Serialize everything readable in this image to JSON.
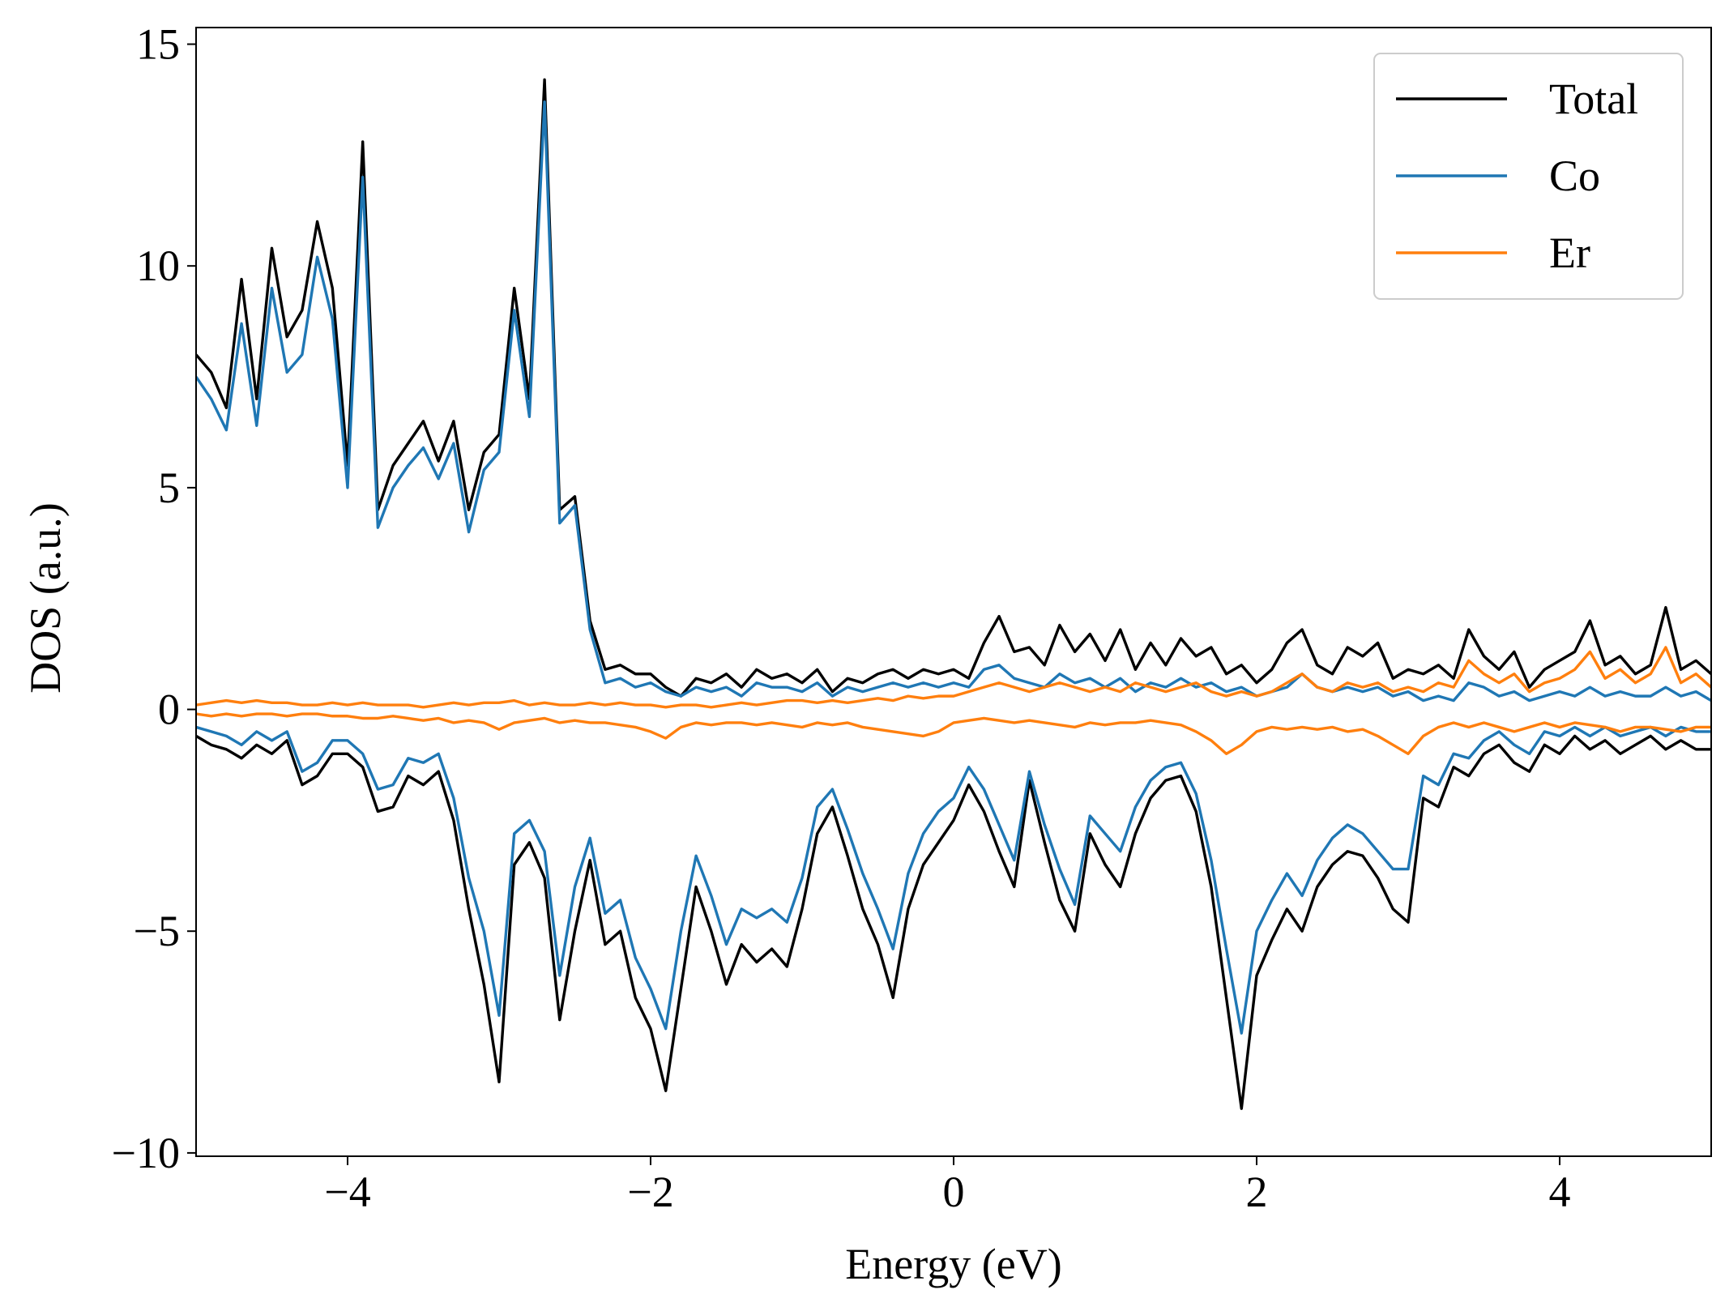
{
  "chart_data": {
    "type": "line",
    "x_label": "Energy (eV)",
    "y_label": "DOS (a.u.)",
    "legend": "upper right",
    "xlim": [
      -5,
      5
    ],
    "ylim": [
      -10.075,
      15.375
    ],
    "xticks": [
      {
        "value": -4,
        "label": "−4"
      },
      {
        "value": -2,
        "label": "−2"
      },
      0,
      2,
      4
    ],
    "yticks": [
      {
        "value": -10,
        "label": "−10"
      },
      {
        "value": -5,
        "label": "−5"
      },
      0,
      5,
      10,
      15
    ],
    "x": [
      -5.0,
      -4.9,
      -4.8,
      -4.7,
      -4.6,
      -4.5,
      -4.4,
      -4.3,
      -4.2,
      -4.1,
      -4.0,
      -3.9,
      -3.8,
      -3.7,
      -3.6,
      -3.5,
      -3.4,
      -3.3,
      -3.2,
      -3.1,
      -3.0,
      -2.9,
      -2.8,
      -2.7,
      -2.6,
      -2.5,
      -2.4,
      -2.3,
      -2.2,
      -2.1,
      -2.0,
      -1.9,
      -1.8,
      -1.7,
      -1.6,
      -1.5,
      -1.4,
      -1.3,
      -1.2,
      -1.1,
      -1.0,
      -0.9,
      -0.8,
      -0.7,
      -0.6,
      -0.5,
      -0.4,
      -0.3,
      -0.2,
      -0.1,
      0,
      0.1,
      0.2,
      0.3,
      0.4,
      0.5,
      0.6,
      0.7,
      0.8,
      0.9,
      1.0,
      1.1,
      1.2,
      1.3,
      1.4,
      1.5,
      1.6,
      1.7,
      1.8,
      1.9,
      2.0,
      2.1,
      2.2,
      2.3,
      2.4,
      2.5,
      2.6,
      2.7,
      2.8,
      2.9,
      3.0,
      3.1,
      3.2,
      3.3,
      3.4,
      3.5,
      3.6,
      3.7,
      3.8,
      3.9,
      4.0,
      4.1,
      4.2,
      4.3,
      4.4,
      4.5,
      4.6,
      4.7,
      4.8,
      4.9,
      5.0
    ],
    "series": [
      {
        "name": "Total",
        "color": "#000000",
        "values": [
          8.0,
          7.6,
          6.8,
          9.7,
          7.0,
          10.4,
          8.4,
          9.0,
          11.0,
          9.5,
          5.5,
          12.8,
          4.5,
          5.5,
          6.0,
          6.5,
          5.6,
          6.5,
          4.5,
          5.8,
          6.2,
          9.5,
          7.0,
          14.2,
          4.5,
          4.8,
          2.0,
          0.9,
          1.0,
          0.8,
          0.8,
          0.5,
          0.3,
          0.7,
          0.6,
          0.8,
          0.5,
          0.9,
          0.7,
          0.8,
          0.6,
          0.9,
          0.4,
          0.7,
          0.6,
          0.8,
          0.9,
          0.7,
          0.9,
          0.8,
          0.9,
          0.7,
          1.5,
          2.1,
          1.3,
          1.4,
          1.0,
          1.9,
          1.3,
          1.7,
          1.1,
          1.8,
          0.9,
          1.5,
          1.0,
          1.6,
          1.2,
          1.4,
          0.8,
          1.0,
          0.6,
          0.9,
          1.5,
          1.8,
          1.0,
          0.8,
          1.4,
          1.2,
          1.5,
          0.7,
          0.9,
          0.8,
          1.0,
          0.7,
          1.8,
          1.2,
          0.9,
          1.3,
          0.5,
          0.9,
          1.1,
          1.3,
          2.0,
          1.0,
          1.2,
          0.8,
          1.0,
          2.3,
          0.9,
          1.1,
          0.8
        ],
        "values_down": [
          -0.6,
          -0.8,
          -0.9,
          -1.1,
          -0.8,
          -1.0,
          -0.7,
          -1.7,
          -1.5,
          -1.0,
          -1.0,
          -1.3,
          -2.3,
          -2.2,
          -1.5,
          -1.7,
          -1.4,
          -2.5,
          -4.5,
          -6.2,
          -8.4,
          -3.5,
          -3.0,
          -3.8,
          -7.0,
          -5.0,
          -3.4,
          -5.3,
          -5.0,
          -6.5,
          -7.2,
          -8.6,
          -6.3,
          -4.0,
          -5.0,
          -6.2,
          -5.3,
          -5.7,
          -5.4,
          -5.8,
          -4.5,
          -2.8,
          -2.2,
          -3.3,
          -4.5,
          -5.3,
          -6.5,
          -4.5,
          -3.5,
          -3.0,
          -2.5,
          -1.7,
          -2.3,
          -3.2,
          -4.0,
          -1.6,
          -3.0,
          -4.3,
          -5.0,
          -2.8,
          -3.5,
          -4.0,
          -2.8,
          -2.0,
          -1.6,
          -1.5,
          -2.3,
          -4.0,
          -6.5,
          -9.0,
          -6.0,
          -5.2,
          -4.5,
          -5.0,
          -4.0,
          -3.5,
          -3.2,
          -3.3,
          -3.8,
          -4.5,
          -4.8,
          -2.0,
          -2.2,
          -1.3,
          -1.5,
          -1.0,
          -0.8,
          -1.2,
          -1.4,
          -0.8,
          -1.0,
          -0.6,
          -0.9,
          -0.7,
          -1.0,
          -0.8,
          -0.6,
          -0.9,
          -0.7,
          -0.9,
          -0.9
        ]
      },
      {
        "name": "Co",
        "color": "#1f77b4",
        "values": [
          7.5,
          7.0,
          6.3,
          8.7,
          6.4,
          9.5,
          7.6,
          8.0,
          10.2,
          8.8,
          5.0,
          12.0,
          4.1,
          5.0,
          5.5,
          5.9,
          5.2,
          6.0,
          4.0,
          5.4,
          5.8,
          9.0,
          6.6,
          13.7,
          4.2,
          4.6,
          1.8,
          0.6,
          0.7,
          0.5,
          0.6,
          0.4,
          0.3,
          0.5,
          0.4,
          0.5,
          0.3,
          0.6,
          0.5,
          0.5,
          0.4,
          0.6,
          0.3,
          0.5,
          0.4,
          0.5,
          0.6,
          0.5,
          0.6,
          0.5,
          0.6,
          0.5,
          0.9,
          1.0,
          0.7,
          0.6,
          0.5,
          0.8,
          0.6,
          0.7,
          0.5,
          0.7,
          0.4,
          0.6,
          0.5,
          0.7,
          0.5,
          0.6,
          0.4,
          0.5,
          0.3,
          0.4,
          0.5,
          0.8,
          0.5,
          0.4,
          0.5,
          0.4,
          0.5,
          0.3,
          0.4,
          0.2,
          0.3,
          0.2,
          0.6,
          0.5,
          0.3,
          0.4,
          0.2,
          0.3,
          0.4,
          0.3,
          0.5,
          0.3,
          0.4,
          0.3,
          0.3,
          0.5,
          0.3,
          0.4,
          0.2
        ],
        "values_down": [
          -0.4,
          -0.5,
          -0.6,
          -0.8,
          -0.5,
          -0.7,
          -0.5,
          -1.4,
          -1.2,
          -0.7,
          -0.7,
          -1.0,
          -1.8,
          -1.7,
          -1.1,
          -1.2,
          -1.0,
          -2.0,
          -3.8,
          -5.0,
          -6.9,
          -2.8,
          -2.5,
          -3.2,
          -6.0,
          -4.0,
          -2.9,
          -4.6,
          -4.3,
          -5.6,
          -6.3,
          -7.2,
          -5.0,
          -3.3,
          -4.2,
          -5.3,
          -4.5,
          -4.7,
          -4.5,
          -4.8,
          -3.8,
          -2.2,
          -1.8,
          -2.7,
          -3.7,
          -4.5,
          -5.4,
          -3.7,
          -2.8,
          -2.3,
          -2.0,
          -1.3,
          -1.8,
          -2.6,
          -3.4,
          -1.4,
          -2.6,
          -3.6,
          -4.4,
          -2.4,
          -2.8,
          -3.2,
          -2.2,
          -1.6,
          -1.3,
          -1.2,
          -1.9,
          -3.4,
          -5.4,
          -7.3,
          -5.0,
          -4.3,
          -3.7,
          -4.2,
          -3.4,
          -2.9,
          -2.6,
          -2.8,
          -3.2,
          -3.6,
          -3.6,
          -1.5,
          -1.7,
          -1.0,
          -1.1,
          -0.7,
          -0.5,
          -0.8,
          -1.0,
          -0.5,
          -0.6,
          -0.4,
          -0.6,
          -0.4,
          -0.6,
          -0.5,
          -0.4,
          -0.6,
          -0.4,
          -0.5,
          -0.5
        ]
      },
      {
        "name": "Er",
        "color": "#ff7f0e",
        "values": [
          0.1,
          0.15,
          0.2,
          0.15,
          0.2,
          0.15,
          0.15,
          0.1,
          0.1,
          0.15,
          0.1,
          0.15,
          0.1,
          0.1,
          0.1,
          0.05,
          0.1,
          0.15,
          0.1,
          0.15,
          0.15,
          0.2,
          0.1,
          0.15,
          0.1,
          0.1,
          0.15,
          0.1,
          0.15,
          0.1,
          0.1,
          0.05,
          0.1,
          0.1,
          0.05,
          0.1,
          0.15,
          0.1,
          0.15,
          0.2,
          0.2,
          0.15,
          0.2,
          0.15,
          0.2,
          0.25,
          0.2,
          0.3,
          0.25,
          0.3,
          0.3,
          0.4,
          0.5,
          0.6,
          0.5,
          0.4,
          0.5,
          0.6,
          0.5,
          0.4,
          0.5,
          0.4,
          0.6,
          0.5,
          0.4,
          0.5,
          0.6,
          0.4,
          0.3,
          0.4,
          0.3,
          0.4,
          0.6,
          0.8,
          0.5,
          0.4,
          0.6,
          0.5,
          0.6,
          0.4,
          0.5,
          0.4,
          0.6,
          0.5,
          1.1,
          0.8,
          0.6,
          0.8,
          0.4,
          0.6,
          0.7,
          0.9,
          1.3,
          0.7,
          0.9,
          0.6,
          0.8,
          1.4,
          0.6,
          0.8,
          0.5
        ],
        "values_down": [
          -0.1,
          -0.15,
          -0.1,
          -0.15,
          -0.1,
          -0.1,
          -0.15,
          -0.1,
          -0.1,
          -0.15,
          -0.15,
          -0.2,
          -0.2,
          -0.15,
          -0.2,
          -0.25,
          -0.2,
          -0.3,
          -0.25,
          -0.3,
          -0.45,
          -0.3,
          -0.25,
          -0.2,
          -0.3,
          -0.25,
          -0.3,
          -0.3,
          -0.35,
          -0.4,
          -0.5,
          -0.65,
          -0.4,
          -0.3,
          -0.35,
          -0.3,
          -0.3,
          -0.35,
          -0.3,
          -0.35,
          -0.4,
          -0.3,
          -0.35,
          -0.3,
          -0.4,
          -0.45,
          -0.5,
          -0.55,
          -0.6,
          -0.5,
          -0.3,
          -0.25,
          -0.2,
          -0.25,
          -0.3,
          -0.25,
          -0.3,
          -0.35,
          -0.4,
          -0.3,
          -0.35,
          -0.3,
          -0.3,
          -0.25,
          -0.3,
          -0.35,
          -0.5,
          -0.7,
          -1.0,
          -0.8,
          -0.5,
          -0.4,
          -0.45,
          -0.4,
          -0.45,
          -0.4,
          -0.5,
          -0.45,
          -0.6,
          -0.8,
          -1.0,
          -0.6,
          -0.4,
          -0.3,
          -0.4,
          -0.3,
          -0.4,
          -0.5,
          -0.4,
          -0.3,
          -0.4,
          -0.3,
          -0.35,
          -0.4,
          -0.5,
          -0.4,
          -0.4,
          -0.45,
          -0.5,
          -0.4,
          -0.4
        ]
      }
    ]
  }
}
